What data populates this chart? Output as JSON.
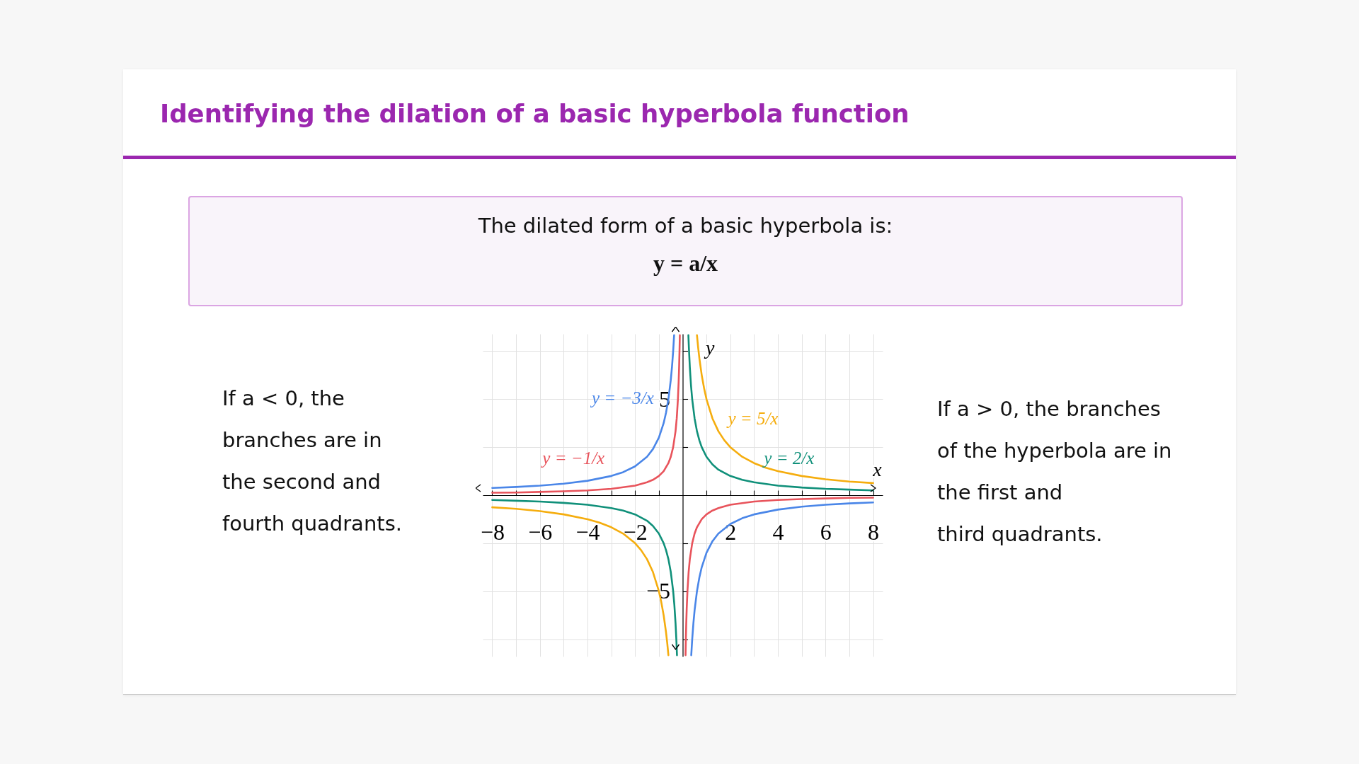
{
  "chart_data": {
    "type": "line",
    "title": "Identifying the dilation of a basic hyperbola function",
    "subtitle": "The dilated form of a basic hyperbola is:",
    "annotations": [
      "y = a/x",
      "If a < 0, the\nbranches are in\nthe second and\nfourth quadrants.",
      "If a > 0, the branches\nof the hyperbola are in\nthe first and\nthird quadrants."
    ],
    "xlabel": "x",
    "ylabel": "y",
    "xlim": [
      -8.4,
      8.4
    ],
    "ylim": [
      -8.4,
      8.4
    ],
    "xticks": [
      -8,
      {
        "value": -7,
        "label": null
      },
      -6,
      {
        "value": -5,
        "label": null
      },
      -4,
      {
        "value": -3,
        "label": null
      },
      -2,
      {
        "value": -1,
        "label": null
      },
      {
        "value": 1,
        "label": null
      },
      2,
      {
        "value": 3,
        "label": null
      },
      4,
      {
        "value": 5,
        "label": null
      },
      6,
      {
        "value": 7,
        "label": null
      },
      8
    ],
    "yticks": [
      {
        "value": -7.5,
        "label": null
      },
      -5,
      {
        "value": -2.5,
        "label": null
      },
      {
        "value": 2.5,
        "label": null
      },
      5,
      {
        "value": 7.5,
        "label": null
      }
    ],
    "grid": true,
    "series": [
      {
        "name": "y = −3/x",
        "color": "#4a86e8",
        "x": [
          -8,
          -7,
          -6,
          -5,
          -4,
          -3,
          -2.5,
          -2,
          -1.5,
          -1.25,
          -1,
          -0.8,
          -0.7,
          -0.6,
          -0.5,
          -0.45,
          -0.4,
          -0.36,
          0,
          0.36,
          0.4,
          0.45,
          0.5,
          0.6,
          0.7,
          0.8,
          1,
          1.25,
          1.5,
          2,
          2.5,
          3,
          4,
          5,
          6,
          7,
          8
        ],
        "values": [
          0.38,
          0.43,
          0.5,
          0.6,
          0.75,
          1,
          1.2,
          1.5,
          2,
          2.4,
          3,
          3.75,
          4.29,
          5,
          6,
          6.67,
          7.5,
          8.33,
          null,
          -8.33,
          -7.5,
          -6.67,
          -6,
          -5,
          -4.29,
          -3.75,
          -3,
          -2.4,
          -2,
          -1.5,
          -1.2,
          -1,
          -0.75,
          -0.6,
          -0.5,
          -0.43,
          -0.38
        ]
      },
      {
        "name": "y = −1/x",
        "color": "#e8535b",
        "x": [
          -8,
          -7,
          -6,
          -5,
          -4,
          -3,
          -2,
          -1.5,
          -1.25,
          -1,
          -0.8,
          -0.6,
          -0.5,
          -0.4,
          -0.3,
          -0.25,
          -0.2,
          -0.17,
          -0.15,
          -0.13,
          -0.12,
          0,
          0.12,
          0.13,
          0.15,
          0.17,
          0.2,
          0.25,
          0.3,
          0.4,
          0.5,
          0.6,
          0.8,
          1,
          1.25,
          1.5,
          2,
          3,
          4,
          5,
          6,
          7,
          8
        ],
        "values": [
          0.13,
          0.14,
          0.17,
          0.2,
          0.25,
          0.33,
          0.5,
          0.67,
          0.8,
          1,
          1.25,
          1.67,
          2,
          2.5,
          3.33,
          4,
          5,
          5.88,
          6.67,
          7.69,
          8.33,
          null,
          -8.33,
          -7.69,
          -6.67,
          -5.88,
          -5,
          -4,
          -3.33,
          -2.5,
          -2,
          -1.67,
          -1.25,
          -1,
          -0.8,
          -0.67,
          -0.5,
          -0.33,
          -0.25,
          -0.2,
          -0.17,
          -0.14,
          -0.13
        ]
      },
      {
        "name": "y = 5/x",
        "color": "#f5ad0e",
        "x": [
          -8,
          -7,
          -6,
          -5,
          -4,
          -3.5,
          -3,
          -2.5,
          -2,
          -1.75,
          -1.5,
          -1.25,
          -1,
          -0.9,
          -0.8,
          -0.7,
          -0.65,
          -0.6,
          0,
          0.6,
          0.65,
          0.7,
          0.8,
          0.9,
          1,
          1.25,
          1.5,
          1.75,
          2,
          2.5,
          3,
          3.5,
          4,
          5,
          6,
          7,
          8
        ],
        "values": [
          -0.63,
          -0.71,
          -0.83,
          -1,
          -1.25,
          -1.43,
          -1.67,
          -2,
          -2.5,
          -2.86,
          -3.33,
          -4,
          -5,
          -5.56,
          -6.25,
          -7.14,
          -7.69,
          -8.33,
          null,
          8.33,
          7.69,
          7.14,
          6.25,
          5.56,
          5,
          4,
          3.33,
          2.86,
          2.5,
          2,
          1.67,
          1.43,
          1.25,
          1,
          0.83,
          0.71,
          0.63
        ]
      },
      {
        "name": "y = 2/x",
        "color": "#10907a",
        "x": [
          -8,
          -7,
          -6,
          -5,
          -4,
          -3,
          -2.5,
          -2,
          -1.5,
          -1.25,
          -1,
          -0.8,
          -0.7,
          -0.6,
          -0.5,
          -0.4,
          -0.35,
          -0.3,
          -0.26,
          -0.24,
          0,
          0.24,
          0.26,
          0.3,
          0.35,
          0.4,
          0.5,
          0.6,
          0.7,
          0.8,
          1,
          1.25,
          1.5,
          2,
          2.5,
          3,
          4,
          5,
          6,
          7,
          8
        ],
        "values": [
          -0.25,
          -0.29,
          -0.33,
          -0.4,
          -0.5,
          -0.67,
          -0.8,
          -1,
          -1.33,
          -1.6,
          -2,
          -2.5,
          -2.86,
          -3.33,
          -4,
          -5,
          -5.71,
          -6.67,
          -7.69,
          -8.33,
          null,
          8.33,
          7.69,
          6.67,
          5.71,
          5,
          4,
          3.33,
          2.86,
          2.5,
          2,
          1.6,
          1.33,
          1,
          0.8,
          0.67,
          0.5,
          0.4,
          0.33,
          0.29,
          0.25
        ]
      }
    ]
  }
}
